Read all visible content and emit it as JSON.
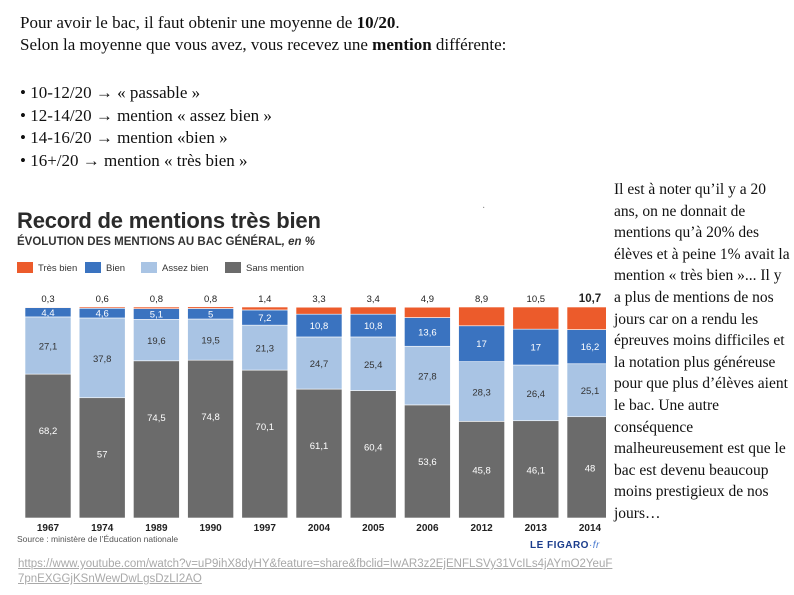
{
  "intro": {
    "line1_start": "Pour avoir le bac, il faut obtenir une moyenne de ",
    "line1_bold": "10/20",
    "line1_end": ".",
    "line2_start": "Selon la moyenne que vous avez, vous recevez une ",
    "line2_bold": "mention",
    "line2_end": " différente:"
  },
  "bullets": [
    "• 10-12/20 → « passable »",
    "• 12-14/20 → mention « assez bien »",
    "• 14-16/20 → mention «bien »",
    "• 16+/20 → mention « très bien »"
  ],
  "side_text": "Il est à noter qu’il y a 20 ans, on ne donnait de mentions qu’à 20% des élèves et à peine 1% avait la mention « très bien »... Il y a plus de mentions de nos jours car on a rendu les épreuves moins difficiles et la notation plus généreuse pour que plus d’élèves aient le bac. Une autre conséquence malheureusement est que le bac est devenu beaucoup moins prestigieux de nos jours…",
  "dot": "·",
  "url": "https://www.youtube.com/watch?v=uP9ihX8dyHY&feature=share&fbclid=IwAR3z2EjENFLSVy31VcILs4jAYmO2YeuF7pnEXGGjKSnWewDwLgsDzLI2AO",
  "chart_data": {
    "type": "bar",
    "stacked": true,
    "title": "Record de mentions très bien",
    "subtitle": "ÉVOLUTION DES MENTIONS AU BAC GÉNÉRAL",
    "subtitle_unit": ", en %",
    "categories": [
      "1967",
      "1974",
      "1989",
      "1990",
      "1997",
      "2004",
      "2005",
      "2006",
      "2012",
      "2013",
      "2014"
    ],
    "series": [
      {
        "name": "Sans mention",
        "color": "#6b6b6b",
        "label_color": "#ffffff",
        "values": [
          68.2,
          57,
          74.5,
          74.8,
          70.1,
          61.1,
          60.4,
          53.6,
          45.8,
          46.1,
          48
        ],
        "labels": [
          "68,2",
          "57",
          "74,5",
          "74,8",
          "70,1",
          "61,1",
          "60,4",
          "53,6",
          "45,8",
          "46,1",
          "48"
        ]
      },
      {
        "name": "Assez bien",
        "color": "#a9c4e4",
        "label_color": "#333333",
        "values": [
          27.1,
          37.8,
          19.6,
          19.5,
          21.3,
          24.7,
          25.4,
          27.8,
          28.3,
          26.4,
          25.1
        ],
        "labels": [
          "27,1",
          "37,8",
          "19,6",
          "19,5",
          "21,3",
          "24,7",
          "25,4",
          "27,8",
          "28,3",
          "26,4",
          "25,1"
        ]
      },
      {
        "name": "Bien",
        "color": "#3a73c0",
        "label_color": "#ffffff",
        "values": [
          4.4,
          4.6,
          5.1,
          5,
          7.2,
          10.8,
          10.8,
          13.6,
          17,
          17,
          16.2
        ],
        "labels": [
          "4,4",
          "4,6",
          "5,1",
          "5",
          "7,2",
          "10,8",
          "10,8",
          "13,6",
          "17",
          "17",
          "16,2"
        ]
      },
      {
        "name": "Très bien",
        "color": "#ec5b2b",
        "label_color": "#222222",
        "values": [
          0.3,
          0.6,
          0.8,
          0.8,
          1.4,
          3.3,
          3.4,
          4.9,
          8.9,
          10.5,
          10.7
        ],
        "labels": [
          "0,3",
          "0,6",
          "0,8",
          "0,8",
          "1,4",
          "3,3",
          "3,4",
          "4,9",
          "8,9",
          "10,5",
          "10,7"
        ]
      }
    ],
    "legend": [
      "Très bien",
      "Bien",
      "Assez bien",
      "Sans mention"
    ],
    "legend_position": "top-left",
    "ylim": [
      0,
      100
    ],
    "source": "Source : ministère de l’Éducation nationale",
    "logo": "LE FIGARO",
    "logo_suffix": "·fr"
  }
}
